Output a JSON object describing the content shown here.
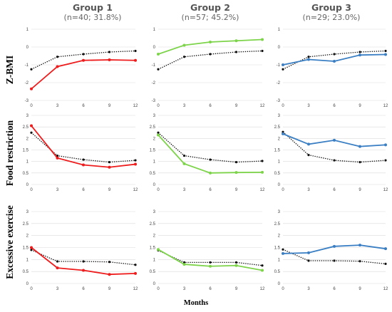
{
  "groups": [
    {
      "title": "Group 1",
      "subtitle": "(n=40; 31.8%)"
    },
    {
      "title": "Group 2",
      "subtitle": "(n=57; 45.2%)"
    },
    {
      "title": "Group 3",
      "subtitle": "(n=29; 23.0%)"
    }
  ],
  "rows": [
    "Z-BMI",
    "Food restriction",
    "Excessive exercise"
  ],
  "xlabel": "Months",
  "colors": {
    "group1": "#ee1c1c",
    "group2": "#7dd44a",
    "group3": "#3a7fc4",
    "reference": "#111111",
    "grid": "#d9d9d9"
  },
  "chart_data": [
    {
      "type": "line",
      "row": "Z-BMI",
      "group": "Group 1",
      "x": [
        0,
        3,
        6,
        9,
        12
      ],
      "ylim": [
        -3,
        1
      ],
      "yticks": [
        -3,
        -2,
        -1,
        0,
        1
      ],
      "series": [
        {
          "values": [
            -2.35,
            -1.1,
            -0.75,
            -0.72,
            -0.75
          ]
        },
        {
          "values": [
            -1.25,
            -0.55,
            -0.4,
            -0.28,
            -0.22
          ]
        }
      ]
    },
    {
      "type": "line",
      "row": "Z-BMI",
      "group": "Group 2",
      "x": [
        0,
        3,
        6,
        9,
        12
      ],
      "ylim": [
        -3,
        1
      ],
      "yticks": [
        -3,
        -2,
        -1,
        0,
        1
      ],
      "series": [
        {
          "values": [
            -0.4,
            0.1,
            0.28,
            0.35,
            0.42
          ]
        },
        {
          "values": [
            -1.25,
            -0.55,
            -0.4,
            -0.28,
            -0.22
          ]
        }
      ]
    },
    {
      "type": "line",
      "row": "Z-BMI",
      "group": "Group 3",
      "x": [
        0,
        3,
        6,
        9,
        12
      ],
      "ylim": [
        -3,
        1
      ],
      "yticks": [
        -3,
        -2,
        -1,
        0,
        1
      ],
      "series": [
        {
          "values": [
            -1.0,
            -0.7,
            -0.8,
            -0.45,
            -0.42
          ]
        },
        {
          "values": [
            -1.25,
            -0.55,
            -0.4,
            -0.28,
            -0.22
          ]
        }
      ]
    },
    {
      "type": "line",
      "row": "Food restriction",
      "group": "Group 1",
      "x": [
        0,
        3,
        6,
        9,
        12
      ],
      "ylim": [
        0,
        3
      ],
      "yticks": [
        0,
        0.5,
        1,
        1.5,
        2,
        2.5,
        3
      ],
      "series": [
        {
          "values": [
            2.55,
            1.15,
            0.85,
            0.75,
            0.88
          ]
        },
        {
          "values": [
            2.25,
            1.25,
            1.08,
            0.97,
            1.05
          ]
        }
      ]
    },
    {
      "type": "line",
      "row": "Food restriction",
      "group": "Group 2",
      "x": [
        0,
        3,
        6,
        9,
        12
      ],
      "ylim": [
        0,
        3
      ],
      "yticks": [
        0,
        0.5,
        1,
        1.5,
        2,
        2.5,
        3
      ],
      "series": [
        {
          "values": [
            2.15,
            0.9,
            0.5,
            0.52,
            0.53
          ]
        },
        {
          "values": [
            2.25,
            1.25,
            1.08,
            0.97,
            1.02
          ]
        }
      ]
    },
    {
      "type": "line",
      "row": "Food restriction",
      "group": "Group 3",
      "x": [
        0,
        3,
        6,
        9,
        12
      ],
      "ylim": [
        0,
        3
      ],
      "yticks": [
        0,
        0.5,
        1,
        1.5,
        2,
        2.5,
        3
      ],
      "series": [
        {
          "values": [
            2.2,
            1.75,
            1.92,
            1.65,
            1.72
          ]
        },
        {
          "values": [
            2.28,
            1.28,
            1.05,
            0.97,
            1.05
          ]
        }
      ]
    },
    {
      "type": "line",
      "row": "Excessive exercise",
      "group": "Group 1",
      "x": [
        0,
        3,
        6,
        9,
        12
      ],
      "ylim": [
        0,
        3
      ],
      "yticks": [
        0,
        0.5,
        1,
        1.5,
        2,
        2.5,
        3
      ],
      "series": [
        {
          "values": [
            1.5,
            0.65,
            0.55,
            0.38,
            0.42
          ]
        },
        {
          "values": [
            1.4,
            0.92,
            0.92,
            0.9,
            0.78
          ]
        }
      ]
    },
    {
      "type": "line",
      "row": "Excessive exercise",
      "group": "Group 2",
      "x": [
        0,
        3,
        6,
        9,
        12
      ],
      "ylim": [
        0,
        3
      ],
      "yticks": [
        0,
        0.5,
        1,
        1.5,
        2,
        2.5,
        3
      ],
      "series": [
        {
          "values": [
            1.42,
            0.8,
            0.72,
            0.75,
            0.55
          ]
        },
        {
          "values": [
            1.38,
            0.88,
            0.88,
            0.88,
            0.75
          ]
        }
      ]
    },
    {
      "type": "line",
      "row": "Excessive exercise",
      "group": "Group 3",
      "x": [
        0,
        3,
        6,
        9,
        12
      ],
      "ylim": [
        0,
        3
      ],
      "yticks": [
        0,
        0.5,
        1,
        1.5,
        2,
        2.5,
        3
      ],
      "series": [
        {
          "values": [
            1.25,
            1.28,
            1.55,
            1.6,
            1.45
          ]
        },
        {
          "values": [
            1.42,
            0.95,
            0.95,
            0.93,
            0.82
          ]
        }
      ]
    }
  ]
}
